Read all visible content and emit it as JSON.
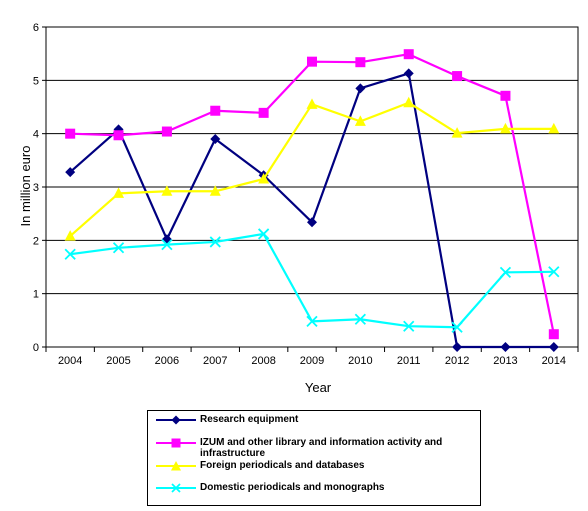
{
  "chart_data": {
    "type": "line",
    "title": "",
    "xlabel": "Year",
    "ylabel": "In million  euro",
    "ylim": [
      0,
      6
    ],
    "yticks": [
      "0",
      "1",
      "2",
      "3",
      "4",
      "5",
      "6"
    ],
    "categories": [
      "2004",
      "2005",
      "2006",
      "2007",
      "2008",
      "2009",
      "2010",
      "2011",
      "2012",
      "2013",
      "2014"
    ],
    "grid": "horizontal",
    "legend_position": "bottom",
    "series": [
      {
        "name": "Research equipment",
        "color": "#000080",
        "marker": "diamond",
        "values": [
          3.28,
          4.08,
          2.02,
          3.9,
          3.22,
          2.34,
          4.85,
          5.13,
          0,
          0,
          0
        ]
      },
      {
        "name": "IZUM and other library and information activity and infrastructure",
        "color": "#ff00ff",
        "marker": "square",
        "values": [
          4.0,
          3.97,
          4.04,
          4.43,
          4.39,
          5.35,
          5.34,
          5.49,
          5.08,
          4.71,
          0.24
        ]
      },
      {
        "name": "Foreign periodicals and databases",
        "color": "#ffff00",
        "marker": "triangle",
        "values": [
          2.08,
          2.88,
          2.92,
          2.92,
          3.15,
          4.55,
          4.23,
          4.58,
          4.01,
          4.09,
          4.09
        ]
      },
      {
        "name": "Domestic periodicals and monographs",
        "color": "#00ffff",
        "marker": "x",
        "values": [
          1.74,
          1.86,
          1.92,
          1.97,
          2.12,
          0.48,
          0.52,
          0.39,
          0.37,
          1.4,
          1.41
        ]
      }
    ]
  }
}
